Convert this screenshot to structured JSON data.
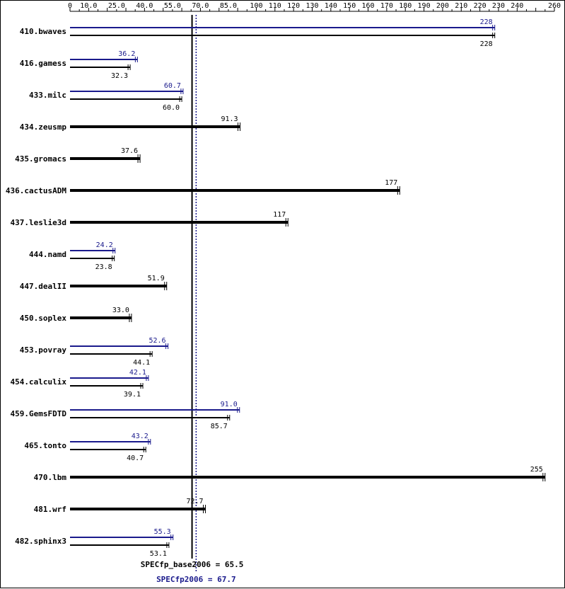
{
  "chart_data": {
    "type": "bar",
    "orientation": "horizontal",
    "title": "",
    "xlabel": "",
    "ylabel": "",
    "xlim": [
      0,
      260
    ],
    "x_tick_labels": [
      "0",
      "10.0",
      "25.0",
      "40.0",
      "55.0",
      "70.0",
      "85.0",
      "100",
      "110",
      "120",
      "130",
      "140",
      "150",
      "160",
      "170",
      "180",
      "190",
      "200",
      "210",
      "220",
      "230",
      "240",
      "260"
    ],
    "x_tick_values": [
      0,
      10,
      25,
      40,
      55,
      70,
      85,
      100,
      110,
      120,
      130,
      140,
      150,
      160,
      170,
      180,
      190,
      200,
      210,
      220,
      230,
      240,
      260
    ],
    "series_colors": {
      "peak": "#1a1a8c",
      "base": "#000000"
    },
    "categories": [
      "410.bwaves",
      "416.gamess",
      "433.milc",
      "434.zeusmp",
      "435.gromacs",
      "436.cactusADM",
      "437.leslie3d",
      "444.namd",
      "447.dealII",
      "450.soplex",
      "453.povray",
      "454.calculix",
      "459.GemsFDTD",
      "465.tonto",
      "470.lbm",
      "481.wrf",
      "482.sphinx3"
    ],
    "rows": [
      {
        "name": "410.bwaves",
        "peak": 228,
        "peak_label": "228",
        "base": 228,
        "base_label": "228"
      },
      {
        "name": "416.gamess",
        "peak": 36.2,
        "peak_label": "36.2",
        "base": 32.3,
        "base_label": "32.3"
      },
      {
        "name": "433.milc",
        "peak": 60.7,
        "peak_label": "60.7",
        "base": 60.0,
        "base_label": "60.0"
      },
      {
        "name": "434.zeusmp",
        "peak": null,
        "peak_label": "",
        "base": 91.3,
        "base_label": "91.3"
      },
      {
        "name": "435.gromacs",
        "peak": null,
        "peak_label": "",
        "base": 37.6,
        "base_label": "37.6"
      },
      {
        "name": "436.cactusADM",
        "peak": null,
        "peak_label": "",
        "base": 177,
        "base_label": "177"
      },
      {
        "name": "437.leslie3d",
        "peak": null,
        "peak_label": "",
        "base": 117,
        "base_label": "117"
      },
      {
        "name": "444.namd",
        "peak": 24.2,
        "peak_label": "24.2",
        "base": 23.8,
        "base_label": "23.8"
      },
      {
        "name": "447.dealII",
        "peak": null,
        "peak_label": "",
        "base": 51.9,
        "base_label": "51.9"
      },
      {
        "name": "450.soplex",
        "peak": null,
        "peak_label": "",
        "base": 33.0,
        "base_label": "33.0"
      },
      {
        "name": "453.povray",
        "peak": 52.6,
        "peak_label": "52.6",
        "base": 44.1,
        "base_label": "44.1"
      },
      {
        "name": "454.calculix",
        "peak": 42.1,
        "peak_label": "42.1",
        "base": 39.1,
        "base_label": "39.1"
      },
      {
        "name": "459.GemsFDTD",
        "peak": 91.0,
        "peak_label": "91.0",
        "base": 85.7,
        "base_label": "85.7"
      },
      {
        "name": "465.tonto",
        "peak": 43.2,
        "peak_label": "43.2",
        "base": 40.7,
        "base_label": "40.7"
      },
      {
        "name": "470.lbm",
        "peak": null,
        "peak_label": "",
        "base": 255,
        "base_label": "255"
      },
      {
        "name": "481.wrf",
        "peak": null,
        "peak_label": "",
        "base": 72.7,
        "base_label": "72.7"
      },
      {
        "name": "482.sphinx3",
        "peak": 55.3,
        "peak_label": "55.3",
        "base": 53.1,
        "base_label": "53.1"
      }
    ],
    "reference_lines": [
      {
        "id": "base",
        "value": 65.5,
        "label": "SPECfp_base2006 = 65.5",
        "color": "#000000",
        "style": "solid"
      },
      {
        "id": "peak",
        "value": 67.7,
        "label": "SPECfp2006 = 67.7",
        "color": "#1a1a8c",
        "style": "dotted"
      }
    ]
  }
}
